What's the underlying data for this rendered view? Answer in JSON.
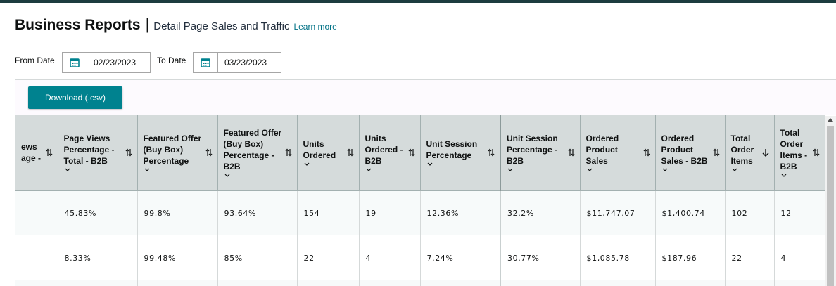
{
  "header": {
    "title": "Business Reports",
    "separator": "|",
    "subtitle": "Detail Page Sales and Traffic",
    "learn_more": "Learn more"
  },
  "filters": {
    "from_label": "From Date",
    "from_value": "02/23/2023",
    "to_label": "To Date",
    "to_value": "03/23/2023",
    "calendar_icon": "calendar-icon"
  },
  "toolbar": {
    "download_label": "Download (.csv)"
  },
  "colors": {
    "accent": "#00828f",
    "link": "#007185",
    "header_bg": "#d5dbdb",
    "top_bar": "#1d3c3f"
  },
  "table": {
    "columns": [
      {
        "label": "ews\nage -",
        "sort_icon": "sort-both-icon",
        "chevron": false
      },
      {
        "label": "Page Views Percentage - Total - B2B",
        "sort_icon": "sort-both-icon",
        "chevron": true
      },
      {
        "label": "Featured Offer (Buy Box) Percentage",
        "sort_icon": "sort-both-icon",
        "chevron": true
      },
      {
        "label": "Featured Offer (Buy Box) Percentage - B2B",
        "sort_icon": "sort-both-icon",
        "chevron": true
      },
      {
        "label": "Units Ordered",
        "sort_icon": "sort-both-icon",
        "chevron": true
      },
      {
        "label": "Units Ordered - B2B",
        "sort_icon": "sort-both-icon",
        "chevron": true
      },
      {
        "label": "Unit Session Percentage",
        "sort_icon": "sort-both-icon",
        "chevron": true
      },
      {
        "label": "Unit Session Percentage - B2B",
        "sort_icon": "sort-both-icon",
        "chevron": true
      },
      {
        "label": "Ordered Product Sales",
        "sort_icon": "sort-both-icon",
        "chevron": true
      },
      {
        "label": "Ordered Product Sales - B2B",
        "sort_icon": "sort-both-icon",
        "chevron": true
      },
      {
        "label": "Total Order Items",
        "sort_icon": "sort-down-icon",
        "chevron": true
      },
      {
        "label": "Total Order Items - B2B",
        "sort_icon": "sort-both-icon",
        "chevron": true
      }
    ],
    "rows": [
      [
        "",
        "45.83%",
        "99.8%",
        "93.64%",
        "154",
        "19",
        "12.36%",
        "32.2%",
        "$11,747.07",
        "$1,400.74",
        "102",
        "12"
      ],
      [
        "",
        "8.33%",
        "99.48%",
        "85%",
        "22",
        "4",
        "7.24%",
        "30.77%",
        "$1,085.78",
        "$187.96",
        "22",
        "4"
      ]
    ]
  }
}
